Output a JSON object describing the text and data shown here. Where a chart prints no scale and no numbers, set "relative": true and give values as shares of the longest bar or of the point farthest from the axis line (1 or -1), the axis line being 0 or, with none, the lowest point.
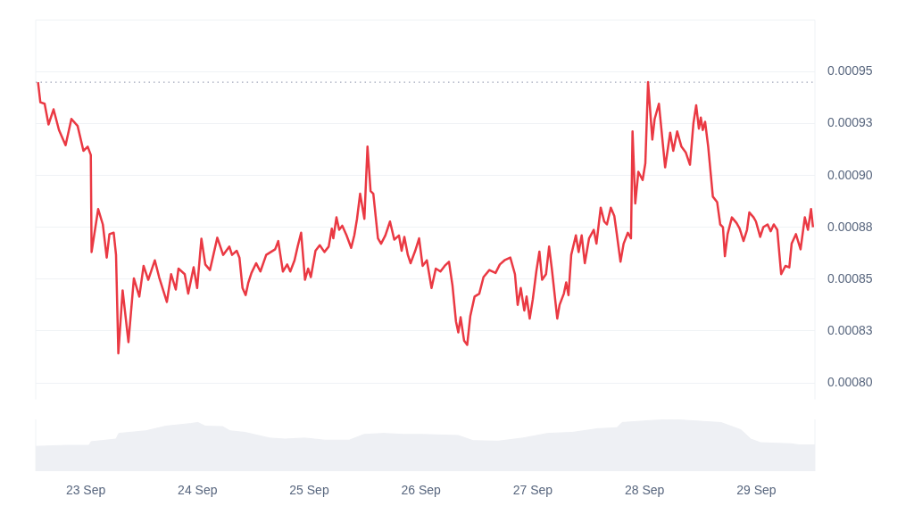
{
  "chart_data": [
    {
      "type": "line",
      "xlim": [
        "--09-22T13:15",
        "--09-29T12:35"
      ],
      "tick_labels": "y",
      "xticks": [
        {
          "value": "--09-23",
          "label": "23 Sep"
        },
        {
          "value": "--09-24",
          "label": "24 Sep"
        },
        {
          "value": "--09-25",
          "label": "25 Sep"
        },
        {
          "value": "--09-26",
          "label": "26 Sep"
        },
        {
          "value": "--09-27",
          "label": "27 Sep"
        },
        {
          "value": "--09-28",
          "label": "28 Sep"
        },
        {
          "value": "--09-29",
          "label": "29 Sep"
        }
      ],
      "ylim": [
        0.000792,
        0.000975
      ],
      "yticks": [
        {
          "value": 0.0008,
          "label": "0.00080"
        },
        {
          "value": 0.000825,
          "label": "0.00083"
        },
        {
          "value": 0.00085,
          "label": "0.00085"
        },
        {
          "value": 0.000875,
          "label": "0.00088"
        },
        {
          "value": 0.0009,
          "label": "0.00090"
        },
        {
          "value": 0.000925,
          "label": "0.00093"
        },
        {
          "value": 0.00095,
          "label": "0.00095"
        }
      ],
      "grid": "y",
      "marker": "none",
      "line_style": "solid",
      "ref_lines": [
        {
          "axis": "y",
          "value": 0.000945,
          "color": "#a1a7bb",
          "line_style": "dotted"
        }
      ],
      "series": [
        {
          "color": "#ea3943",
          "x": [
            "--09-22T13:45",
            "--09-22T14:15",
            "--09-22T15:10",
            "--09-22T16:00",
            "--09-22T17:05",
            "--09-22T18:15",
            "--09-22T19:40",
            "--09-22T20:55",
            "--09-22T22:15",
            "--09-22T23:30",
            "--09-23T00:25",
            "--09-23T01:05",
            "--09-23T01:15",
            "--09-23T02:40",
            "--09-23T03:40",
            "--09-23T04:30",
            "--09-23T05:05",
            "--09-23T06:00",
            "--09-23T06:30",
            "--09-23T07:00",
            "--09-23T07:55",
            "--09-23T09:10",
            "--09-23T10:20",
            "--09-23T11:30",
            "--09-23T12:25",
            "--09-23T13:25",
            "--09-23T14:50",
            "--09-23T15:45",
            "--09-23T17:25",
            "--09-23T18:20",
            "--09-23T19:20",
            "--09-23T19:55",
            "--09-23T21:15",
            "--09-23T22:00",
            "--09-23T23:10",
            "--09-23T23:55",
            "--09-24T00:50",
            "--09-24T01:40",
            "--09-24T02:40",
            "--09-24T04:15",
            "--09-24T05:30",
            "--09-24T06:50",
            "--09-24T07:25",
            "--09-24T08:25",
            "--09-24T09:00",
            "--09-24T09:40",
            "--09-24T10:20",
            "--09-24T10:55",
            "--09-24T11:35",
            "--09-24T12:35",
            "--09-24T13:30",
            "--09-24T14:45",
            "--09-24T15:45",
            "--09-24T16:40",
            "--09-24T17:20",
            "--09-24T18:20",
            "--09-24T19:15",
            "--09-24T19:55",
            "--09-24T20:50",
            "--09-24T21:30",
            "--09-24T22:15",
            "--09-24T23:05",
            "--09-24T23:45",
            "--09-25T00:20",
            "--09-25T01:20",
            "--09-25T02:15",
            "--09-25T03:15",
            "--09-25T04:10",
            "--09-25T04:50",
            "--09-25T05:10",
            "--09-25T05:50",
            "--09-25T06:25",
            "--09-25T07:05",
            "--09-25T08:00",
            "--09-25T09:00",
            "--09-25T09:40",
            "--09-25T10:15",
            "--09-25T10:55",
            "--09-25T11:50",
            "--09-25T12:30",
            "--09-25T13:10",
            "--09-25T13:45",
            "--09-25T14:45",
            "--09-25T15:25",
            "--09-25T16:20",
            "--09-25T17:20",
            "--09-25T18:15",
            "--09-25T19:15",
            "--09-25T19:50",
            "--09-25T20:25",
            "--09-25T21:10",
            "--09-25T21:45",
            "--09-25T22:45",
            "--09-25T23:35",
            "--09-26T00:20",
            "--09-26T01:15",
            "--09-26T02:15",
            "--09-26T03:10",
            "--09-26T04:10",
            "--09-26T05:05",
            "--09-26T06:00",
            "--09-26T06:45",
            "--09-26T07:30",
            "--09-26T08:00",
            "--09-26T08:30",
            "--09-26T09:15",
            "--09-26T09:55",
            "--09-26T10:35",
            "--09-26T11:30",
            "--09-26T12:30",
            "--09-26T13:25",
            "--09-26T14:40",
            "--09-26T16:00",
            "--09-26T16:55",
            "--09-26T17:55",
            "--09-26T19:10",
            "--09-26T20:10",
            "--09-26T20:45",
            "--09-26T21:25",
            "--09-26T22:10",
            "--09-26T22:40",
            "--09-26T23:20",
            "--09-27T00:00",
            "--09-27T00:45",
            "--09-27T01:25",
            "--09-27T02:00",
            "--09-27T02:50",
            "--09-27T03:30",
            "--09-27T04:05",
            "--09-27T05:15",
            "--09-27T05:45",
            "--09-27T06:40",
            "--09-27T07:10",
            "--09-27T07:40",
            "--09-27T08:15",
            "--09-27T09:15",
            "--09-27T09:50",
            "--09-27T10:30",
            "--09-27T11:10",
            "--09-27T12:05",
            "--09-27T13:05",
            "--09-27T13:40",
            "--09-27T14:35",
            "--09-27T15:20",
            "--09-27T15:55",
            "--09-27T16:45",
            "--09-27T17:30",
            "--09-27T18:00",
            "--09-27T18:50",
            "--09-27T19:30",
            "--09-27T20:25",
            "--09-27T21:05",
            "--09-27T21:25",
            "--09-27T22:00",
            "--09-27T22:40",
            "--09-27T23:35",
            "--09-28T00:10",
            "--09-28T00:45",
            "--09-28T01:40",
            "--09-28T02:10",
            "--09-28T03:05",
            "--09-28T04:25",
            "--09-28T05:30",
            "--09-28T06:10",
            "--09-28T07:00",
            "--09-28T07:55",
            "--09-28T08:50",
            "--09-28T09:45",
            "--09-28T10:30",
            "--09-28T11:05",
            "--09-28T11:40",
            "--09-28T12:05",
            "--09-28T12:30",
            "--09-28T13:00",
            "--09-28T13:40",
            "--09-28T14:40",
            "--09-28T15:35",
            "--09-28T16:15",
            "--09-28T16:50",
            "--09-28T17:15",
            "--09-28T17:50",
            "--09-28T18:45",
            "--09-28T19:45",
            "--09-28T20:25",
            "--09-28T21:15",
            "--09-28T22:00",
            "--09-28T22:30",
            "--09-28T23:25",
            "--09-28T23:55",
            "--09-29T00:50",
            "--09-29T01:30",
            "--09-29T02:25",
            "--09-29T03:05",
            "--09-29T03:45",
            "--09-29T04:30",
            "--09-29T05:20",
            "--09-29T06:15",
            "--09-29T07:05",
            "--09-29T07:35",
            "--09-29T08:30",
            "--09-29T09:30",
            "--09-29T10:25",
            "--09-29T11:05",
            "--09-29T11:45",
            "--09-29T12:10"
          ],
          "values": [
            0.000945,
            0.0009353,
            0.0009346,
            0.0009246,
            0.0009319,
            0.0009219,
            0.0009146,
            0.0009273,
            0.0009239,
            0.0009119,
            0.0009139,
            0.0009099,
            0.0008631,
            0.0008838,
            0.0008764,
            0.0008604,
            0.0008717,
            0.0008724,
            0.0008617,
            0.0008142,
            0.0008446,
            0.0008196,
            0.0008504,
            0.0008416,
            0.0008564,
            0.0008497,
            0.0008591,
            0.000851,
            0.000839,
            0.0008524,
            0.000845,
            0.0008551,
            0.0008524,
            0.000843,
            0.0008557,
            0.0008457,
            0.0008695,
            0.0008571,
            0.0008544,
            0.00087,
            0.0008617,
            0.0008657,
            0.0008617,
            0.0008637,
            0.0008604,
            0.0008457,
            0.0008423,
            0.0008484,
            0.000853,
            0.0008577,
            0.0008537,
            0.0008617,
            0.0008631,
            0.0008644,
            0.0008684,
            0.0008537,
            0.0008571,
            0.0008537,
            0.0008591,
            0.0008657,
            0.0008724,
            0.0008497,
            0.0008551,
            0.000851,
            0.0008637,
            0.0008664,
            0.0008631,
            0.0008657,
            0.0008744,
            0.0008697,
            0.0008798,
            0.0008738,
            0.0008758,
            0.0008711,
            0.0008651,
            0.0008711,
            0.0008791,
            0.0008912,
            0.0008791,
            0.0009139,
            0.0008925,
            0.0008912,
            0.0008697,
            0.0008671,
            0.0008711,
            0.0008778,
            0.0008691,
            0.0008711,
            0.0008637,
            0.0008704,
            0.0008617,
            0.0008577,
            0.0008637,
            0.0008697,
            0.0008564,
            0.0008591,
            0.0008457,
            0.0008551,
            0.0008537,
            0.0008564,
            0.0008584,
            0.000847,
            0.0008296,
            0.0008243,
            0.0008316,
            0.0008203,
            0.0008183,
            0.0008323,
            0.0008416,
            0.000843,
            0.000851,
            0.0008544,
            0.000853,
            0.0008571,
            0.0008591,
            0.0008604,
            0.0008524,
            0.0008376,
            0.0008457,
            0.0008349,
            0.0008416,
            0.000831,
            0.0008403,
            0.0008537,
            0.0008633,
            0.0008497,
            0.0008524,
            0.0008657,
            0.0008551,
            0.000831,
            0.0008376,
            0.000843,
            0.0008484,
            0.0008423,
            0.0008617,
            0.0008711,
            0.0008631,
            0.0008711,
            0.0008577,
            0.0008697,
            0.0008738,
            0.0008671,
            0.0008845,
            0.0008778,
            0.0008764,
            0.0008845,
            0.0008805,
            0.0008724,
            0.0008584,
            0.0008671,
            0.0008724,
            0.0008697,
            0.0009213,
            0.0008865,
            0.0009018,
            0.0008978,
            0.0009059,
            0.000945,
            0.0009173,
            0.0009273,
            0.0009346,
            0.0009039,
            0.0009206,
            0.0009119,
            0.0009213,
            0.0009139,
            0.0009112,
            0.0009052,
            0.0009253,
            0.0009339,
            0.0009226,
            0.0009279,
            0.0009219,
            0.0009259,
            0.0009139,
            0.0008898,
            0.0008872,
            0.0008764,
            0.0008751,
            0.0008611,
            0.0008717,
            0.0008798,
            0.0008771,
            0.0008744,
            0.0008684,
            0.0008738,
            0.0008822,
            0.0008798,
            0.0008778,
            0.0008704,
            0.0008751,
            0.0008764,
            0.0008731,
            0.0008764,
            0.0008738,
            0.0008524,
            0.0008564,
            0.0008557,
            0.0008671,
            0.0008717,
            0.0008644,
            0.0008798,
            0.0008738,
            0.0008838,
            0.0008751
          ]
        }
      ]
    },
    {
      "type": "area",
      "relative": true,
      "xlim": [
        "--09-22T13:15",
        "--09-29T12:35"
      ],
      "tick_labels": "x",
      "xticks": [
        {
          "value": "--09-23",
          "label": "23 Sep"
        },
        {
          "value": "--09-24",
          "label": "24 Sep"
        },
        {
          "value": "--09-25",
          "label": "25 Sep"
        },
        {
          "value": "--09-26",
          "label": "26 Sep"
        },
        {
          "value": "--09-27",
          "label": "27 Sep"
        },
        {
          "value": "--09-28",
          "label": "28 Sep"
        },
        {
          "value": "--09-29",
          "label": "29 Sep"
        }
      ],
      "series": [
        {
          "color": "#eef0f4",
          "x": [
            "--09-22T13:15",
            "--09-22T19:50",
            "--09-23T00:40",
            "--09-23T01:10",
            "--09-23T06:30",
            "--09-23T07:05",
            "--09-23T12:55",
            "--09-23T17:10",
            "--09-23T22:30",
            "--09-24T00:05",
            "--09-24T01:40",
            "--09-24T05:25",
            "--09-24T07:00",
            "--09-24T10:10",
            "--09-24T15:30",
            "--09-24T18:45",
            "--09-24T23:00",
            "--09-25T03:15",
            "--09-25T08:35",
            "--09-25T11:45",
            "--09-25T16:00",
            "--09-25T20:15",
            "--09-26T00:30",
            "--09-26T08:00",
            "--09-26T11:10",
            "--09-26T16:30",
            "--09-26T21:50",
            "--09-27T03:10",
            "--09-27T08:30",
            "--09-27T13:50",
            "--09-27T18:05",
            "--09-27T19:10",
            "--09-28T01:30",
            "--09-28T05:45",
            "--09-28T16:25",
            "--09-28T20:40",
            "--09-28T22:50",
            "--09-29T00:55",
            "--09-29T07:20",
            "--09-29T09:05",
            "--09-29T12:35"
          ],
          "values": [
            0.48,
            0.5,
            0.5,
            0.57,
            0.62,
            0.73,
            0.78,
            0.87,
            0.92,
            0.94,
            0.87,
            0.86,
            0.78,
            0.75,
            0.64,
            0.62,
            0.64,
            0.6,
            0.6,
            0.71,
            0.73,
            0.71,
            0.71,
            0.69,
            0.59,
            0.58,
            0.64,
            0.73,
            0.75,
            0.82,
            0.84,
            0.94,
            0.98,
            1,
            0.94,
            0.8,
            0.62,
            0.55,
            0.53,
            0.51,
            0.51
          ]
        }
      ]
    }
  ]
}
